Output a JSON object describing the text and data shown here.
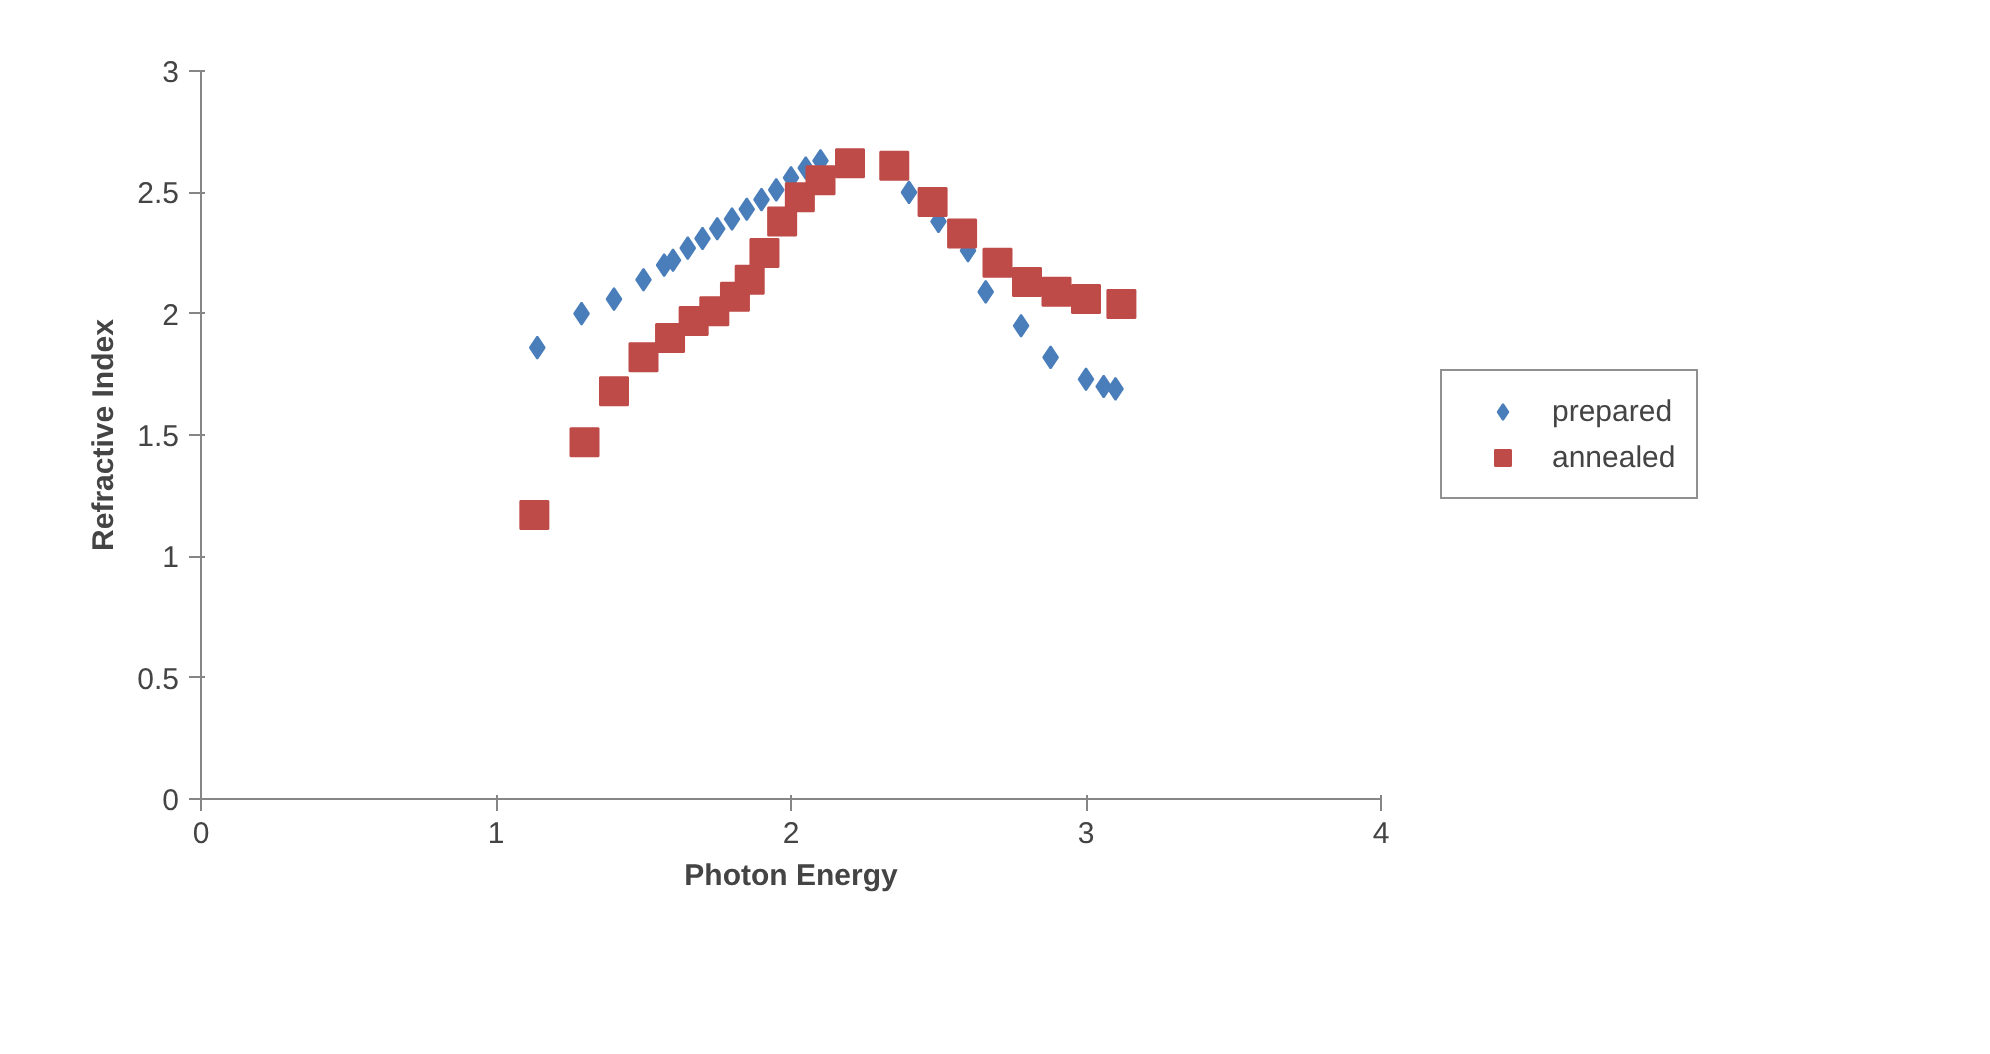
{
  "chart_data": {
    "type": "scatter",
    "xlabel": "Photon Energy",
    "ylabel": "Refractive Index",
    "xlim": [
      0,
      4
    ],
    "ylim": [
      0,
      3
    ],
    "xticks": [
      0,
      1,
      2,
      3,
      4
    ],
    "yticks": [
      0,
      0.5,
      1,
      1.5,
      2,
      2.5,
      3
    ],
    "grid": false,
    "legend": "right",
    "series": [
      {
        "name": "prepared",
        "color": "#4a7ebb",
        "marker": "diamond",
        "x": [
          1.14,
          1.29,
          1.4,
          1.5,
          1.57,
          1.6,
          1.65,
          1.7,
          1.75,
          1.8,
          1.85,
          1.9,
          1.95,
          2.0,
          2.05,
          2.1,
          2.4,
          2.5,
          2.6,
          2.66,
          2.78,
          2.88,
          3.0,
          3.06,
          3.1
        ],
        "values": [
          1.86,
          2.0,
          2.06,
          2.14,
          2.2,
          2.22,
          2.27,
          2.31,
          2.35,
          2.39,
          2.43,
          2.47,
          2.51,
          2.56,
          2.6,
          2.63,
          2.5,
          2.38,
          2.26,
          2.09,
          1.95,
          1.82,
          1.73,
          1.7,
          1.69
        ]
      },
      {
        "name": "annealed",
        "color": "#be4b48",
        "marker": "square",
        "x": [
          1.13,
          1.3,
          1.4,
          1.5,
          1.59,
          1.67,
          1.74,
          1.81,
          1.86,
          1.91,
          1.97,
          2.03,
          2.1,
          2.2,
          2.35,
          2.48,
          2.58,
          2.7,
          2.8,
          2.9,
          3.0,
          3.12
        ],
        "values": [
          1.17,
          1.47,
          1.68,
          1.82,
          1.9,
          1.97,
          2.01,
          2.07,
          2.14,
          2.25,
          2.38,
          2.48,
          2.55,
          2.62,
          2.61,
          2.46,
          2.33,
          2.21,
          2.13,
          2.09,
          2.06,
          2.04
        ]
      }
    ]
  }
}
